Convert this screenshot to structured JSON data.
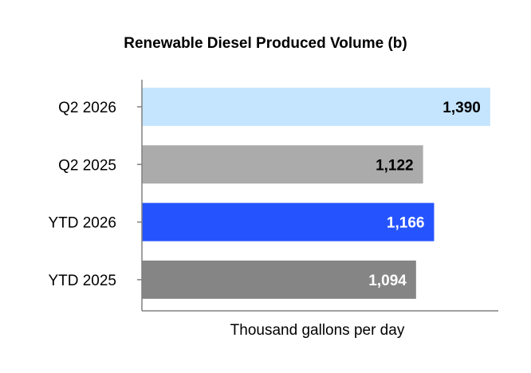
{
  "chart_data": {
    "type": "bar",
    "orientation": "horizontal",
    "title": "Renewable Diesel Produced Volume (b)",
    "xlabel": "Thousand gallons per day",
    "ylabel": "",
    "categories": [
      "Q2 2026",
      "Q2 2025",
      "YTD 2026",
      "YTD 2025"
    ],
    "values": [
      1390,
      1122,
      1166,
      1094
    ],
    "data_labels": [
      "1,390",
      "1,122",
      "1,166",
      "1,094"
    ],
    "bar_colors": [
      "#c5e5ff",
      "#ababab",
      "#2554ff",
      "#858585"
    ],
    "label_colors": [
      "#000000",
      "#000000",
      "#ffffff",
      "#ffffff"
    ],
    "xlim": [
      0,
      1400
    ],
    "grid": false,
    "legend": "none"
  }
}
